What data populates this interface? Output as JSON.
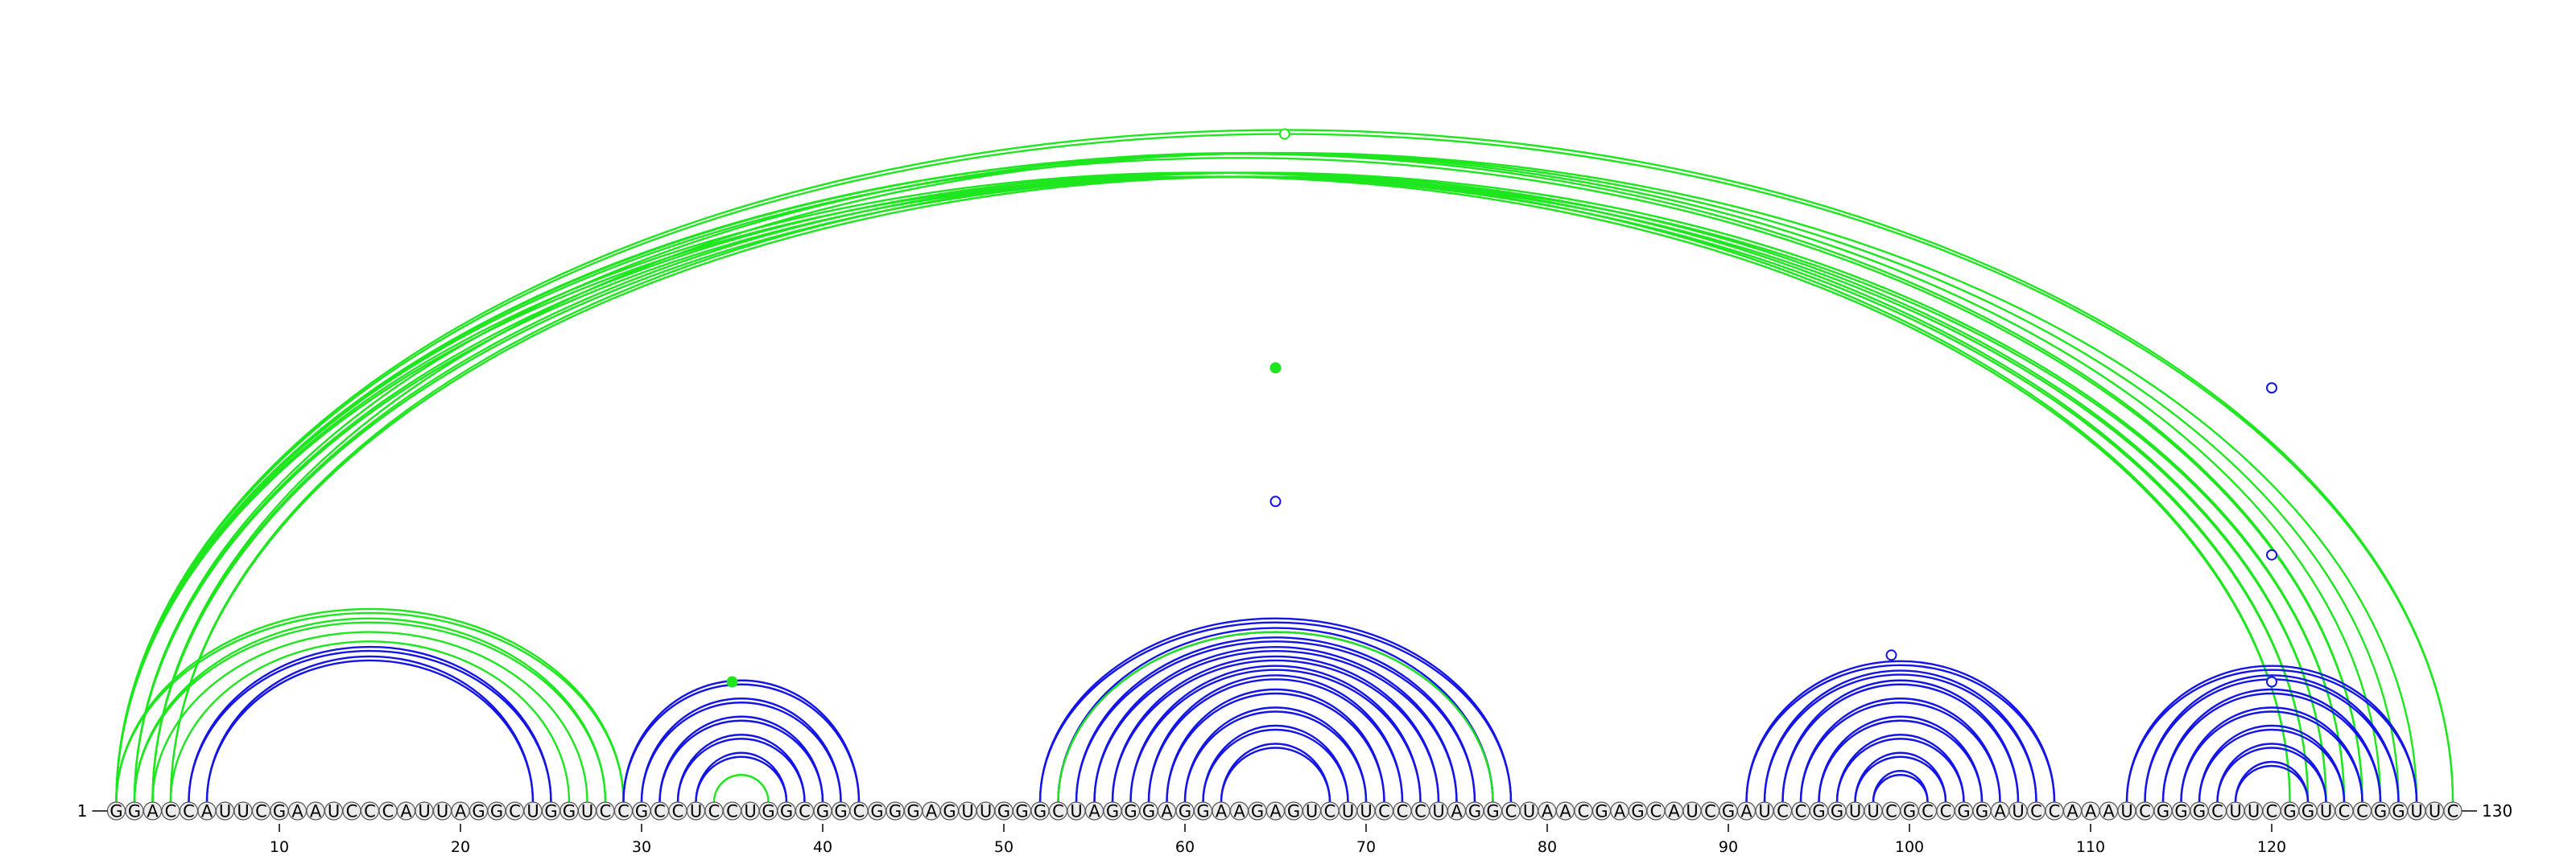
{
  "sequence": "GGACCAUUCGAAUCCCAUUAGGCUGGUCCGCCUCCUGGCGGCGGGAGUUGGGCUAGGGAGGAAGAGUCUUCCCUAGGCUAACGAGCAUCGAUCCGGUUCGCCGGAUCCAAAUCGGGCUUCGGUCCGGUUC",
  "labels": {
    "start": "1",
    "end": "130"
  },
  "ticks": [
    10,
    20,
    30,
    40,
    50,
    60,
    70,
    80,
    90,
    100,
    110,
    120
  ],
  "colors": {
    "blue": "#1414e6",
    "green": "#1ee61e"
  },
  "arc_groups": [
    {
      "color": "green",
      "pairs": [
        [
          1,
          121
        ],
        [
          2,
          122
        ],
        [
          3,
          123
        ],
        [
          4,
          124
        ]
      ],
      "lines": 2
    },
    {
      "color": "green",
      "pairs": [
        [
          1,
          126
        ],
        [
          2,
          127
        ],
        [
          3,
          128
        ]
      ],
      "lines": 1
    },
    {
      "color": "green",
      "pairs": [
        [
          1,
          125
        ]
      ],
      "lines": 2
    },
    {
      "color": "green",
      "pairs": [
        [
          1,
          130
        ]
      ],
      "lines": 2
    },
    {
      "color": "green",
      "pairs": [
        [
          1,
          29
        ],
        [
          2,
          28
        ]
      ],
      "lines": 2
    },
    {
      "color": "green",
      "pairs": [
        [
          3,
          27
        ],
        [
          4,
          26
        ]
      ],
      "lines": 1
    },
    {
      "color": "blue",
      "pairs": [
        [
          5,
          25
        ],
        [
          6,
          24
        ]
      ],
      "lines": 2
    },
    {
      "color": "blue",
      "pairs": [
        [
          29,
          42
        ],
        [
          30,
          41
        ],
        [
          31,
          40
        ],
        [
          32,
          39
        ],
        [
          33,
          38
        ]
      ],
      "lines": 2
    },
    {
      "color": "green",
      "pairs": [
        [
          34,
          37
        ]
      ],
      "lines": 1
    },
    {
      "color": "blue",
      "pairs": [
        [
          52,
          78
        ],
        [
          53,
          77
        ],
        [
          54,
          76
        ],
        [
          55,
          75
        ],
        [
          56,
          74
        ],
        [
          57,
          73
        ],
        [
          58,
          72
        ],
        [
          59,
          71
        ],
        [
          60,
          70
        ],
        [
          61,
          69
        ],
        [
          62,
          68
        ]
      ],
      "lines": 2
    },
    {
      "color": "green",
      "pairs": [
        [
          53,
          77
        ]
      ],
      "lines": 1
    },
    {
      "color": "blue",
      "pairs": [
        [
          91,
          108
        ],
        [
          92,
          107
        ],
        [
          93,
          106
        ],
        [
          94,
          105
        ],
        [
          95,
          104
        ],
        [
          96,
          103
        ],
        [
          97,
          102
        ],
        [
          98,
          101
        ]
      ],
      "lines": 2
    },
    {
      "color": "blue",
      "pairs": [
        [
          112,
          128
        ],
        [
          113,
          127
        ],
        [
          114,
          126
        ],
        [
          115,
          125
        ],
        [
          116,
          124
        ],
        [
          117,
          123
        ],
        [
          118,
          122
        ]
      ],
      "lines": 2
    }
  ],
  "markers": [
    {
      "pos": 65.5,
      "level": 1,
      "color": "green",
      "filled": false
    },
    {
      "pos": 65,
      "level": 0.65,
      "color": "green",
      "filled": true
    },
    {
      "pos": 65,
      "level": 0.45,
      "color": "blue",
      "filled": false
    },
    {
      "pos": 35,
      "level": 0.18,
      "color": "green",
      "filled": true
    },
    {
      "pos": 99,
      "level": 0.22,
      "color": "blue",
      "filled": false
    },
    {
      "pos": 120,
      "level": 0.62,
      "color": "blue",
      "filled": false
    },
    {
      "pos": 120,
      "level": 0.37,
      "color": "blue",
      "filled": false
    },
    {
      "pos": 120,
      "level": 0.18,
      "color": "blue",
      "filled": false
    }
  ]
}
